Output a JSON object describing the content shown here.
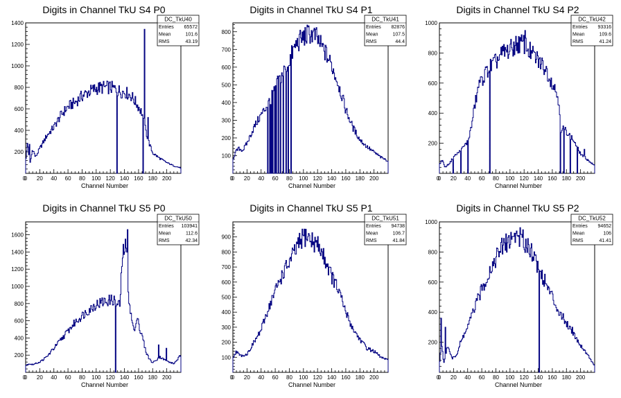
{
  "chart_data": [
    {
      "type": "histogram",
      "title": "Digits in Channel TkU S4 P0",
      "xlabel": "Channel Number",
      "xlim": [
        0,
        220
      ],
      "ylim": [
        0,
        1400
      ],
      "xticks": [
        0,
        20,
        40,
        60,
        80,
        100,
        120,
        140,
        160,
        180,
        200
      ],
      "yticks": [
        200,
        400,
        600,
        800,
        1000,
        1200,
        1400
      ],
      "ytick_labels": [
        "200",
        "400",
        "600",
        "800",
        "1000",
        "1200",
        "1400"
      ],
      "line_color": "#000080",
      "stats": {
        "name": "DC_TkU40",
        "entries": "65572",
        "mean": "101.6",
        "rms": "43.19"
      },
      "profile": [
        [
          0,
          120
        ],
        [
          3,
          280
        ],
        [
          6,
          80
        ],
        [
          10,
          230
        ],
        [
          14,
          150
        ],
        [
          20,
          230
        ],
        [
          30,
          350
        ],
        [
          40,
          430
        ],
        [
          50,
          540
        ],
        [
          60,
          620
        ],
        [
          70,
          660
        ],
        [
          80,
          720
        ],
        [
          90,
          760
        ],
        [
          100,
          790
        ],
        [
          110,
          800
        ],
        [
          120,
          800
        ],
        [
          128,
          780
        ],
        [
          135,
          760
        ],
        [
          140,
          760
        ],
        [
          150,
          720
        ],
        [
          160,
          620
        ],
        [
          165,
          560
        ],
        [
          170,
          400
        ],
        [
          175,
          280
        ],
        [
          180,
          190
        ],
        [
          190,
          140
        ],
        [
          200,
          100
        ],
        [
          210,
          70
        ],
        [
          220,
          50
        ]
      ],
      "spikes": [
        [
          2,
          280
        ],
        [
          5,
          270
        ],
        [
          129,
          0
        ],
        [
          166,
          0
        ],
        [
          168,
          1340
        ],
        [
          173,
          520
        ]
      ]
    },
    {
      "type": "histogram",
      "title": "Digits in Channel TkU S4 P1",
      "xlabel": "Channel Number",
      "xlim": [
        0,
        220
      ],
      "ylim": [
        0,
        850
      ],
      "xticks": [
        0,
        20,
        40,
        60,
        80,
        100,
        120,
        140,
        160,
        180,
        200
      ],
      "yticks": [
        100,
        200,
        300,
        400,
        500,
        600,
        700,
        800
      ],
      "ytick_labels": [
        "100",
        "200",
        "300",
        "400",
        "500",
        "600",
        "700",
        "800"
      ],
      "line_color": "#000080",
      "stats": {
        "name": "DC_TkU41",
        "entries": "82876",
        "mean": "107.5",
        "rms": "44.4"
      },
      "profile": [
        [
          0,
          80
        ],
        [
          4,
          120
        ],
        [
          8,
          140
        ],
        [
          14,
          130
        ],
        [
          20,
          170
        ],
        [
          30,
          260
        ],
        [
          40,
          330
        ],
        [
          48,
          380
        ],
        [
          55,
          430
        ],
        [
          62,
          500
        ],
        [
          70,
          560
        ],
        [
          80,
          640
        ],
        [
          90,
          730
        ],
        [
          100,
          770
        ],
        [
          110,
          790
        ],
        [
          118,
          770
        ],
        [
          125,
          720
        ],
        [
          130,
          690
        ],
        [
          140,
          610
        ],
        [
          150,
          500
        ],
        [
          160,
          360
        ],
        [
          170,
          260
        ],
        [
          180,
          190
        ],
        [
          190,
          150
        ],
        [
          200,
          120
        ],
        [
          210,
          90
        ],
        [
          220,
          70
        ]
      ],
      "spikes": [
        [
          49,
          0
        ],
        [
          52,
          0
        ],
        [
          54,
          0
        ],
        [
          56,
          0
        ],
        [
          59,
          0
        ],
        [
          61,
          0
        ],
        [
          64,
          0
        ],
        [
          67,
          0
        ],
        [
          71,
          0
        ],
        [
          75,
          0
        ],
        [
          78,
          0
        ],
        [
          82,
          0
        ]
      ]
    },
    {
      "type": "histogram",
      "title": "Digits in Channel TkU S4 P2",
      "xlabel": "Channel Number",
      "xlim": [
        0,
        220
      ],
      "ylim": [
        0,
        1000
      ],
      "xticks": [
        0,
        20,
        40,
        60,
        80,
        100,
        120,
        140,
        160,
        180,
        200
      ],
      "yticks": [
        200,
        400,
        600,
        800,
        1000
      ],
      "ytick_labels": [
        "200",
        "400",
        "600",
        "800",
        "1000"
      ],
      "line_color": "#000080",
      "stats": {
        "name": "DC_TkU42",
        "entries": "93316",
        "mean": "109.6",
        "rms": "41.24"
      },
      "profile": [
        [
          0,
          60
        ],
        [
          4,
          90
        ],
        [
          8,
          40
        ],
        [
          15,
          70
        ],
        [
          20,
          110
        ],
        [
          30,
          150
        ],
        [
          40,
          210
        ],
        [
          45,
          300
        ],
        [
          50,
          450
        ],
        [
          55,
          560
        ],
        [
          60,
          620
        ],
        [
          70,
          700
        ],
        [
          80,
          740
        ],
        [
          90,
          800
        ],
        [
          100,
          820
        ],
        [
          110,
          860
        ],
        [
          120,
          860
        ],
        [
          130,
          800
        ],
        [
          140,
          750
        ],
        [
          150,
          700
        ],
        [
          160,
          600
        ],
        [
          165,
          550
        ],
        [
          170,
          470
        ],
        [
          172,
          250
        ],
        [
          175,
          300
        ],
        [
          180,
          280
        ],
        [
          190,
          220
        ],
        [
          200,
          130
        ],
        [
          210,
          90
        ],
        [
          220,
          50
        ]
      ],
      "spikes": [
        [
          19,
          0
        ],
        [
          30,
          0
        ],
        [
          40,
          0
        ],
        [
          56,
          620
        ],
        [
          71,
          0
        ],
        [
          121,
          950
        ],
        [
          171,
          0
        ],
        [
          176,
          0
        ],
        [
          185,
          0
        ],
        [
          195,
          0
        ],
        [
          205,
          160
        ]
      ]
    },
    {
      "type": "histogram",
      "title": "Digits in Channel TkU S5 P0",
      "xlabel": "Channel Number",
      "xlim": [
        0,
        220
      ],
      "ylim": [
        0,
        1750
      ],
      "xticks": [
        0,
        20,
        40,
        60,
        80,
        100,
        120,
        140,
        160,
        180,
        200
      ],
      "yticks": [
        200,
        400,
        600,
        800,
        1000,
        1200,
        1400,
        1600
      ],
      "ytick_labels": [
        "200",
        "400",
        "600",
        "800",
        "1000",
        "1200",
        "1400",
        "1600"
      ],
      "line_color": "#000080",
      "stats": {
        "name": "DC_TkU50",
        "entries": "103941",
        "mean": "112.6",
        "rms": "42.34"
      },
      "profile": [
        [
          0,
          80
        ],
        [
          5,
          100
        ],
        [
          10,
          90
        ],
        [
          20,
          120
        ],
        [
          30,
          180
        ],
        [
          40,
          280
        ],
        [
          50,
          380
        ],
        [
          60,
          480
        ],
        [
          70,
          580
        ],
        [
          80,
          660
        ],
        [
          90,
          730
        ],
        [
          100,
          790
        ],
        [
          110,
          820
        ],
        [
          120,
          840
        ],
        [
          125,
          840
        ],
        [
          130,
          780
        ],
        [
          134,
          800
        ],
        [
          137,
          1350
        ],
        [
          140,
          1450
        ],
        [
          143,
          1450
        ],
        [
          146,
          900
        ],
        [
          150,
          620
        ],
        [
          155,
          450
        ],
        [
          158,
          700
        ],
        [
          162,
          480
        ],
        [
          166,
          400
        ],
        [
          170,
          250
        ],
        [
          175,
          160
        ],
        [
          180,
          110
        ],
        [
          190,
          180
        ],
        [
          200,
          130
        ],
        [
          210,
          100
        ],
        [
          220,
          200
        ]
      ],
      "spikes": [
        [
          127,
          0
        ],
        [
          144,
          1660
        ],
        [
          188,
          320
        ],
        [
          199,
          280
        ]
      ]
    },
    {
      "type": "histogram",
      "title": "Digits in Channel TkU S5 P1",
      "xlabel": "Channel Number",
      "xlim": [
        0,
        220
      ],
      "ylim": [
        0,
        1000
      ],
      "xticks": [
        0,
        20,
        40,
        60,
        80,
        100,
        120,
        140,
        160,
        180,
        200
      ],
      "yticks": [
        100,
        200,
        300,
        400,
        500,
        600,
        700,
        800,
        900
      ],
      "ytick_labels": [
        "100",
        "200",
        "300",
        "400",
        "500",
        "600",
        "700",
        "800",
        "900"
      ],
      "line_color": "#000080",
      "stats": {
        "name": "DC_TkU51",
        "entries": "94738",
        "mean": "106.7",
        "rms": "41.84"
      },
      "profile": [
        [
          0,
          100
        ],
        [
          5,
          140
        ],
        [
          10,
          110
        ],
        [
          20,
          120
        ],
        [
          30,
          200
        ],
        [
          40,
          280
        ],
        [
          50,
          420
        ],
        [
          60,
          540
        ],
        [
          70,
          650
        ],
        [
          80,
          730
        ],
        [
          90,
          820
        ],
        [
          100,
          900
        ],
        [
          105,
          910
        ],
        [
          110,
          880
        ],
        [
          120,
          850
        ],
        [
          130,
          760
        ],
        [
          140,
          640
        ],
        [
          150,
          540
        ],
        [
          160,
          400
        ],
        [
          170,
          290
        ],
        [
          180,
          220
        ],
        [
          190,
          160
        ],
        [
          200,
          140
        ],
        [
          210,
          100
        ],
        [
          220,
          80
        ]
      ]
    },
    {
      "type": "histogram",
      "title": "Digits in Channel TkU S5 P2",
      "xlabel": "Channel Number",
      "xlim": [
        0,
        220
      ],
      "ylim": [
        0,
        1000
      ],
      "xticks": [
        0,
        20,
        40,
        60,
        80,
        100,
        120,
        140,
        160,
        180,
        200
      ],
      "yticks": [
        200,
        400,
        600,
        800,
        1000
      ],
      "ytick_labels": [
        "200",
        "400",
        "600",
        "800",
        "1000"
      ],
      "line_color": "#000080",
      "stats": {
        "name": "DC_TkU52",
        "entries": "94652",
        "mean": "106",
        "rms": "41.41"
      },
      "profile": [
        [
          0,
          50
        ],
        [
          3,
          200
        ],
        [
          6,
          60
        ],
        [
          12,
          180
        ],
        [
          18,
          90
        ],
        [
          25,
          120
        ],
        [
          30,
          200
        ],
        [
          40,
          300
        ],
        [
          50,
          430
        ],
        [
          60,
          550
        ],
        [
          70,
          660
        ],
        [
          80,
          760
        ],
        [
          90,
          840
        ],
        [
          100,
          880
        ],
        [
          110,
          920
        ],
        [
          118,
          880
        ],
        [
          125,
          850
        ],
        [
          130,
          820
        ],
        [
          140,
          700
        ],
        [
          150,
          600
        ],
        [
          160,
          500
        ],
        [
          170,
          400
        ],
        [
          180,
          330
        ],
        [
          190,
          260
        ],
        [
          200,
          180
        ],
        [
          210,
          120
        ],
        [
          220,
          40
        ]
      ],
      "spikes": [
        [
          2,
          360
        ],
        [
          8,
          300
        ],
        [
          141,
          0
        ],
        [
          188,
          300
        ]
      ]
    }
  ]
}
